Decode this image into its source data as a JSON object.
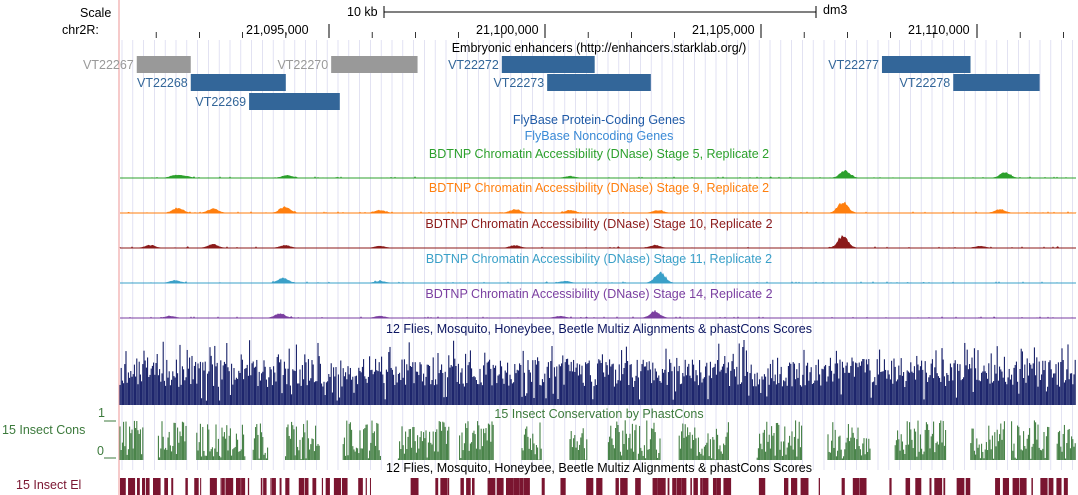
{
  "ruler": {
    "scale_label": "Scale",
    "chrom_label": "chr2R:",
    "scale_bar_text": "10 kb",
    "assembly": "dm3",
    "ticks": [
      "21,095,000",
      "21,100,000",
      "21,105,000",
      "21,110,000"
    ]
  },
  "enhancers": {
    "title": "Embryonic enhancers (http://enhancers.starklab.org/)",
    "items": [
      {
        "id": "VT22267",
        "color": "#999999",
        "row": 0,
        "start": 21090550,
        "end": 21091800
      },
      {
        "id": "VT22268",
        "color": "#336699",
        "row": 1,
        "start": 21091800,
        "end": 21094000
      },
      {
        "id": "VT22269",
        "color": "#336699",
        "row": 2,
        "start": 21093150,
        "end": 21095250
      },
      {
        "id": "VT22270",
        "color": "#999999",
        "row": 0,
        "start": 21095050,
        "end": 21097050
      },
      {
        "id": "VT22272",
        "color": "#336699",
        "row": 0,
        "start": 21099000,
        "end": 21101150
      },
      {
        "id": "VT22273",
        "color": "#336699",
        "row": 1,
        "start": 21100050,
        "end": 21102450
      },
      {
        "id": "VT22277",
        "color": "#336699",
        "row": 0,
        "start": 21107800,
        "end": 21109850
      },
      {
        "id": "VT22278",
        "color": "#336699",
        "row": 1,
        "start": 21109450,
        "end": 21111450
      }
    ]
  },
  "gene_tracks": {
    "protein_coding": "FlyBase Protein-Coding Genes",
    "noncoding": "FlyBase Noncoding Genes"
  },
  "dnase_tracks": [
    {
      "title": "BDTNP Chromatin Accessibility (DNase) Stage 5, Replicate 2",
      "color": "#2ca02c",
      "seed": 5
    },
    {
      "title": "BDTNP Chromatin Accessibility (DNase) Stage 9, Replicate 2",
      "color": "#ff7f0e",
      "seed": 9
    },
    {
      "title": "BDTNP Chromatin Accessibility (DNase) Stage 10, Replicate 2",
      "color": "#8b1a1a",
      "seed": 10
    },
    {
      "title": "BDTNP Chromatin Accessibility (DNase) Stage 11, Replicate 2",
      "color": "#3aa0c8",
      "seed": 11
    },
    {
      "title": "BDTNP Chromatin Accessibility (DNase) Stage 14, Replicate 2",
      "color": "#7b3fa0",
      "seed": 14
    }
  ],
  "multiz": {
    "title": "12 Flies, Mosquito, Honeybee, Beetle Multiz Alignments & phastCons Scores",
    "color": "#0b1561"
  },
  "insect_cons": {
    "title": "15 Insect Conservation by PhastCons",
    "left_label": "15 Insect Cons",
    "y_max_label": "1",
    "y_min_label": "0",
    "color": "#3c7a3c"
  },
  "insect_el": {
    "title": "12 Flies, Mosquito, Honeybee, Beetle Multiz Alignments & phastCons Scores",
    "left_label": "15 Insect El",
    "color": "#7a1530"
  },
  "colors": {
    "gene_title": "#1f5aa6",
    "noncoding_title": "#3a8ad6",
    "enhancer_label_blue": "#336699",
    "enhancer_label_gray": "#999999",
    "grid_line": "#d6d6ee",
    "left_border": "#f3b9b9"
  }
}
